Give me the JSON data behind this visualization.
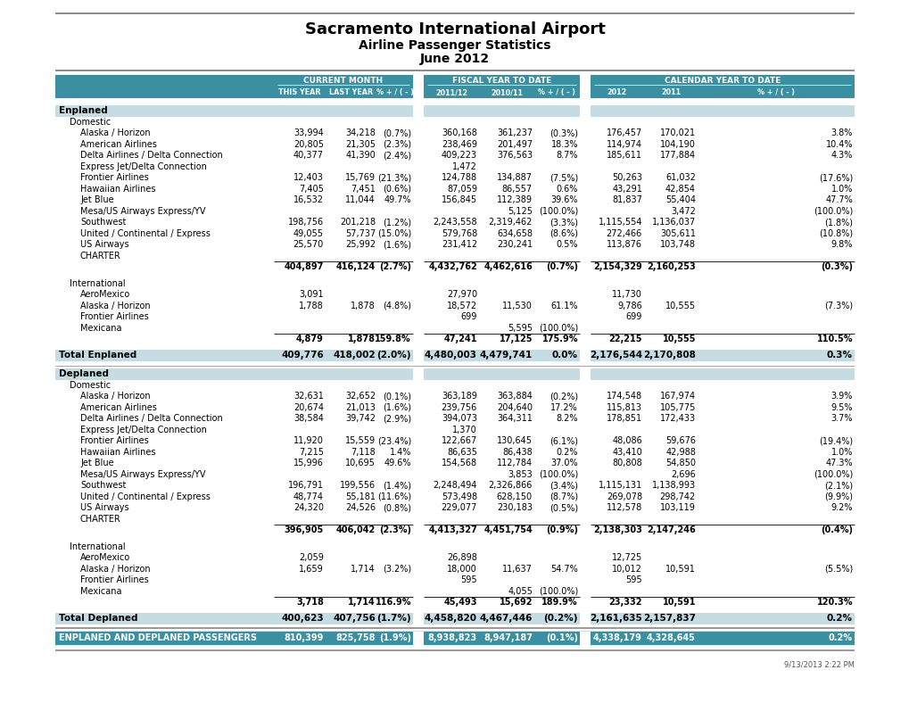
{
  "title1": "Sacramento International Airport",
  "title2": "Airline Passenger Statistics",
  "title3": "June 2012",
  "footer": "9/13/2013 2:22 PM",
  "header_bg": "#3a8fa0",
  "section_bg": "#c5dde2",
  "total_bg": "#c5dde2",
  "final_total_bg": "#3a8fa0",
  "enplaned_domestic": [
    [
      "Alaska / Horizon",
      "33,994",
      "34,218",
      "(0.7%)",
      "360,168",
      "361,237",
      "(0.3%)",
      "176,457",
      "170,021",
      "3.8%"
    ],
    [
      "American Airlines",
      "20,805",
      "21,305",
      "(2.3%)",
      "238,469",
      "201,497",
      "18.3%",
      "114,974",
      "104,190",
      "10.4%"
    ],
    [
      "Delta Airlines / Delta Connection",
      "40,377",
      "41,390",
      "(2.4%)",
      "409,223",
      "376,563",
      "8.7%",
      "185,611",
      "177,884",
      "4.3%"
    ],
    [
      "Express Jet/Delta Connection",
      "",
      "",
      "",
      "1,472",
      "",
      "",
      "",
      "",
      ""
    ],
    [
      "Frontier Airlines",
      "12,403",
      "15,769",
      "(21.3%)",
      "124,788",
      "134,887",
      "(7.5%)",
      "50,263",
      "61,032",
      "(17.6%)"
    ],
    [
      "Hawaiian Airlines",
      "7,405",
      "7,451",
      "(0.6%)",
      "87,059",
      "86,557",
      "0.6%",
      "43,291",
      "42,854",
      "1.0%"
    ],
    [
      "Jet Blue",
      "16,532",
      "11,044",
      "49.7%",
      "156,845",
      "112,389",
      "39.6%",
      "81,837",
      "55,404",
      "47.7%"
    ],
    [
      "Mesa/US Airways Express/YV",
      "",
      "",
      "",
      "",
      "5,125",
      "(100.0%)",
      "",
      "3,472",
      "(100.0%)"
    ],
    [
      "Southwest",
      "198,756",
      "201,218",
      "(1.2%)",
      "2,243,558",
      "2,319,462",
      "(3.3%)",
      "1,115,554",
      "1,136,037",
      "(1.8%)"
    ],
    [
      "United / Continental / Express",
      "49,055",
      "57,737",
      "(15.0%)",
      "579,768",
      "634,658",
      "(8.6%)",
      "272,466",
      "305,611",
      "(10.8%)"
    ],
    [
      "US Airways",
      "25,570",
      "25,992",
      "(1.6%)",
      "231,412",
      "230,241",
      "0.5%",
      "113,876",
      "103,748",
      "9.8%"
    ],
    [
      "CHARTER",
      "",
      "",
      "",
      "",
      "",
      "",
      "",
      "",
      ""
    ]
  ],
  "enplaned_domestic_total": [
    "",
    "404,897",
    "416,124",
    "(2.7%)",
    "4,432,762",
    "4,462,616",
    "(0.7%)",
    "2,154,329",
    "2,160,253",
    "(0.3%)"
  ],
  "enplaned_intl": [
    [
      "AeroMexico",
      "3,091",
      "",
      "",
      "27,970",
      "",
      "",
      "11,730",
      "",
      ""
    ],
    [
      "Alaska / Horizon",
      "1,788",
      "1,878",
      "(4.8%)",
      "18,572",
      "11,530",
      "61.1%",
      "9,786",
      "10,555",
      "(7.3%)"
    ],
    [
      "Frontier Airlines",
      "",
      "",
      "",
      "699",
      "",
      "",
      "699",
      "",
      ""
    ],
    [
      "Mexicana",
      "",
      "",
      "",
      "",
      "5,595",
      "(100.0%)",
      "",
      "",
      ""
    ]
  ],
  "enplaned_intl_total": [
    "",
    "4,879",
    "1,878",
    "159.8%",
    "47,241",
    "17,125",
    "175.9%",
    "22,215",
    "10,555",
    "110.5%"
  ],
  "total_enplaned": [
    "Total Enplaned",
    "409,776",
    "418,002",
    "(2.0%)",
    "4,480,003",
    "4,479,741",
    "0.0%",
    "2,176,544",
    "2,170,808",
    "0.3%"
  ],
  "deplaned_domestic": [
    [
      "Alaska / Horizon",
      "32,631",
      "32,652",
      "(0.1%)",
      "363,189",
      "363,884",
      "(0.2%)",
      "174,548",
      "167,974",
      "3.9%"
    ],
    [
      "American Airlines",
      "20,674",
      "21,013",
      "(1.6%)",
      "239,756",
      "204,640",
      "17.2%",
      "115,813",
      "105,775",
      "9.5%"
    ],
    [
      "Delta Airlines / Delta Connection",
      "38,584",
      "39,742",
      "(2.9%)",
      "394,073",
      "364,311",
      "8.2%",
      "178,851",
      "172,433",
      "3.7%"
    ],
    [
      "Express Jet/Delta Connection",
      "",
      "",
      "",
      "1,370",
      "",
      "",
      "",
      "",
      ""
    ],
    [
      "Frontier Airlines",
      "11,920",
      "15,559",
      "(23.4%)",
      "122,667",
      "130,645",
      "(6.1%)",
      "48,086",
      "59,676",
      "(19.4%)"
    ],
    [
      "Hawaiian Airlines",
      "7,215",
      "7,118",
      "1.4%",
      "86,635",
      "86,438",
      "0.2%",
      "43,410",
      "42,988",
      "1.0%"
    ],
    [
      "Jet Blue",
      "15,996",
      "10,695",
      "49.6%",
      "154,568",
      "112,784",
      "37.0%",
      "80,808",
      "54,850",
      "47.3%"
    ],
    [
      "Mesa/US Airways Express/YV",
      "",
      "",
      "",
      "",
      "3,853",
      "(100.0%)",
      "",
      "2,696",
      "(100.0%)"
    ],
    [
      "Southwest",
      "196,791",
      "199,556",
      "(1.4%)",
      "2,248,494",
      "2,326,866",
      "(3.4%)",
      "1,115,131",
      "1,138,993",
      "(2.1%)"
    ],
    [
      "United / Continental / Express",
      "48,774",
      "55,181",
      "(11.6%)",
      "573,498",
      "628,150",
      "(8.7%)",
      "269,078",
      "298,742",
      "(9.9%)"
    ],
    [
      "US Airways",
      "24,320",
      "24,526",
      "(0.8%)",
      "229,077",
      "230,183",
      "(0.5%)",
      "112,578",
      "103,119",
      "9.2%"
    ],
    [
      "CHARTER",
      "",
      "",
      "",
      "",
      "",
      "",
      "",
      "",
      ""
    ]
  ],
  "deplaned_domestic_total": [
    "",
    "396,905",
    "406,042",
    "(2.3%)",
    "4,413,327",
    "4,451,754",
    "(0.9%)",
    "2,138,303",
    "2,147,246",
    "(0.4%)"
  ],
  "deplaned_intl": [
    [
      "AeroMexico",
      "2,059",
      "",
      "",
      "26,898",
      "",
      "",
      "12,725",
      "",
      ""
    ],
    [
      "Alaska / Horizon",
      "1,659",
      "1,714",
      "(3.2%)",
      "18,000",
      "11,637",
      "54.7%",
      "10,012",
      "10,591",
      "(5.5%)"
    ],
    [
      "Frontier Airlines",
      "",
      "",
      "",
      "595",
      "",
      "",
      "595",
      "",
      ""
    ],
    [
      "Mexicana",
      "",
      "",
      "",
      "",
      "4,055",
      "(100.0%)",
      "",
      "",
      ""
    ]
  ],
  "deplaned_intl_total": [
    "",
    "3,718",
    "1,714",
    "116.9%",
    "45,493",
    "15,692",
    "189.9%",
    "23,332",
    "10,591",
    "120.3%"
  ],
  "total_deplaned": [
    "Total Deplaned",
    "400,623",
    "407,756",
    "(1.7%)",
    "4,458,820",
    "4,467,446",
    "(0.2%)",
    "2,161,635",
    "2,157,837",
    "0.2%"
  ],
  "grand_total": [
    "ENPLANED AND DEPLANED PASSENGERS",
    "810,399",
    "825,758",
    "(1.9%)",
    "8,938,823",
    "8,947,187",
    "(0.1%)",
    "4,338,179",
    "4,328,645",
    "0.2%"
  ]
}
